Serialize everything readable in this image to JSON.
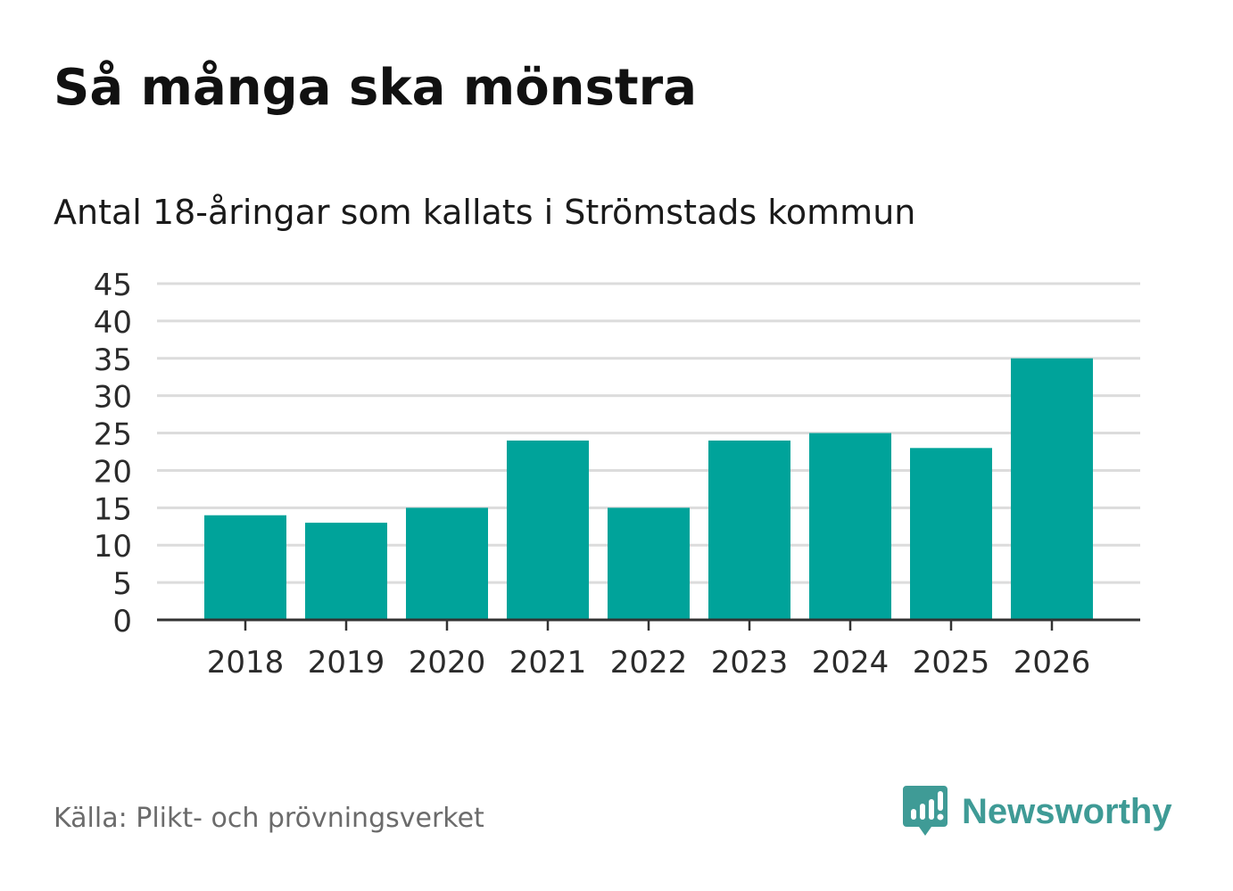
{
  "title": "Så många ska mönstra",
  "subtitle": "Antal 18-åringar som kallats i Strömstads kommun",
  "source": "Källa: Plikt- och prövningsverket",
  "brand": "Newsworthy",
  "colors": {
    "bar": "#00a39a",
    "grid": "#dcdcdc",
    "axis": "#333333",
    "brand": "#3f9b96"
  },
  "chart_data": {
    "type": "bar",
    "title": "Så många ska mönstra",
    "subtitle": "Antal 18-åringar som kallats i Strömstads kommun",
    "xlabel": "",
    "ylabel": "",
    "categories": [
      "2018",
      "2019",
      "2020",
      "2021",
      "2022",
      "2023",
      "2024",
      "2025",
      "2026"
    ],
    "values": [
      14,
      13,
      15,
      24,
      15,
      24,
      25,
      23,
      35
    ],
    "ylim": [
      0,
      45
    ],
    "yticks": [
      0,
      5,
      10,
      15,
      20,
      25,
      30,
      35,
      40,
      45
    ],
    "grid": true
  }
}
